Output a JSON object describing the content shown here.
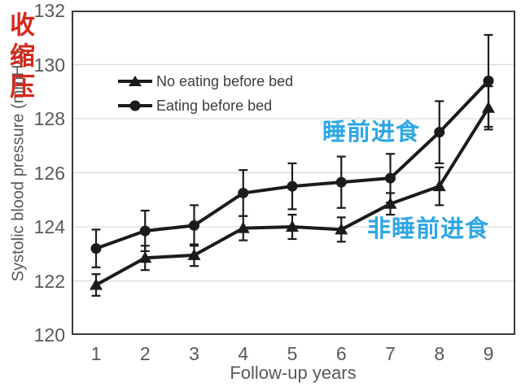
{
  "chart_data": {
    "type": "line",
    "title": "",
    "xlabel": "Follow-up years",
    "ylabel": "Systolic blood pressure (mmHg)",
    "x": [
      1,
      2,
      3,
      4,
      5,
      6,
      7,
      8,
      9
    ],
    "ylim": [
      120,
      132
    ],
    "yticks": [
      120,
      122,
      124,
      126,
      128,
      130,
      132
    ],
    "grid": "horizontal gridlines at each y tick, light gray",
    "legend_position": "inside top-left",
    "error_bars": true,
    "series": [
      {
        "name": "No eating before bed",
        "marker": "triangle",
        "color": "#1b1b1b",
        "values": [
          121.85,
          122.85,
          122.95,
          123.95,
          124.0,
          123.9,
          124.85,
          125.5,
          128.4
        ],
        "errors": [
          0.4,
          0.45,
          0.4,
          0.45,
          0.45,
          0.45,
          0.4,
          0.7,
          0.8
        ]
      },
      {
        "name": "Eating before bed",
        "marker": "circle",
        "color": "#1b1b1b",
        "values": [
          123.2,
          123.85,
          124.05,
          125.25,
          125.5,
          125.65,
          125.8,
          127.5,
          129.4
        ],
        "errors": [
          0.7,
          0.75,
          0.75,
          0.85,
          0.85,
          0.95,
          0.9,
          1.15,
          1.7
        ]
      }
    ],
    "annotations": [
      {
        "id": "eating-before-bed-cn",
        "text": "睡前进食",
        "color": "#2ea6e4"
      },
      {
        "id": "no-eating-before-bed-cn",
        "text": "非睡前进食",
        "color": "#2ea6e4"
      },
      {
        "id": "systolic-pressure-cn",
        "text": "收缩压",
        "color": "#d5281c",
        "orientation": "vertical"
      }
    ]
  },
  "colors": {
    "axis_text": "#595959",
    "legend_text": "#3d3d3d",
    "series_line": "#1b1b1b",
    "gridline": "#d9d9d9",
    "frame": "#3b3b3b",
    "background": "#ffffff"
  }
}
